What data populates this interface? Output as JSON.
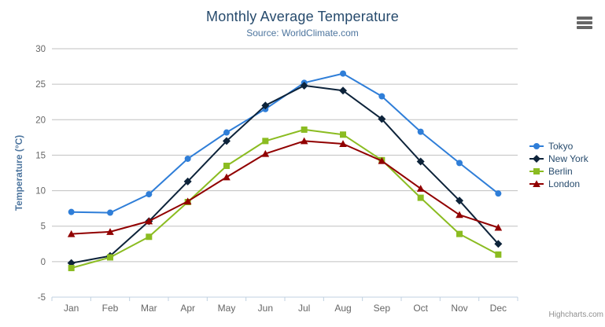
{
  "header": {
    "title": "Monthly Average Temperature",
    "subtitle": "Source: WorldClimate.com"
  },
  "credits": {
    "text": "Highcharts.com"
  },
  "colors": {
    "title": "#274b6d",
    "subtitle": "#4d759e",
    "axis_title": "#4d759e",
    "axis_labels": "#666666",
    "grid_line": "#c0c0c0",
    "axis_line": "#c0d0e0",
    "legend_text": "#274b6d",
    "credits_text": "#909090",
    "background": "#ffffff"
  },
  "chart_data": {
    "type": "line",
    "title": "Monthly Average Temperature",
    "subtitle": "Source: WorldClimate.com",
    "xlabel": "",
    "ylabel": "Temperature (°C)",
    "categories": [
      "Jan",
      "Feb",
      "Mar",
      "Apr",
      "May",
      "Jun",
      "Jul",
      "Aug",
      "Sep",
      "Oct",
      "Nov",
      "Dec"
    ],
    "ylim": [
      -5,
      30
    ],
    "yticks": [
      -5,
      0,
      5,
      10,
      15,
      20,
      25,
      30
    ],
    "grid": true,
    "legend_position": "right",
    "series": [
      {
        "name": "Tokyo",
        "color": "#2f7ed8",
        "marker": "circle",
        "values": [
          7.0,
          6.9,
          9.5,
          14.5,
          18.2,
          21.5,
          25.2,
          26.5,
          23.3,
          18.3,
          13.9,
          9.6
        ]
      },
      {
        "name": "New York",
        "color": "#0d233a",
        "marker": "diamond",
        "values": [
          -0.2,
          0.8,
          5.7,
          11.3,
          17.0,
          22.0,
          24.8,
          24.1,
          20.1,
          14.1,
          8.6,
          2.5
        ]
      },
      {
        "name": "Berlin",
        "color": "#8bbc21",
        "marker": "square",
        "values": [
          -0.9,
          0.6,
          3.5,
          8.4,
          13.5,
          17.0,
          18.6,
          17.9,
          14.3,
          9.0,
          3.9,
          1.0
        ]
      },
      {
        "name": "London",
        "color": "#910000",
        "marker": "triangle",
        "values": [
          3.9,
          4.2,
          5.7,
          8.5,
          11.9,
          15.2,
          17.0,
          16.6,
          14.2,
          10.3,
          6.6,
          4.8
        ]
      }
    ]
  }
}
